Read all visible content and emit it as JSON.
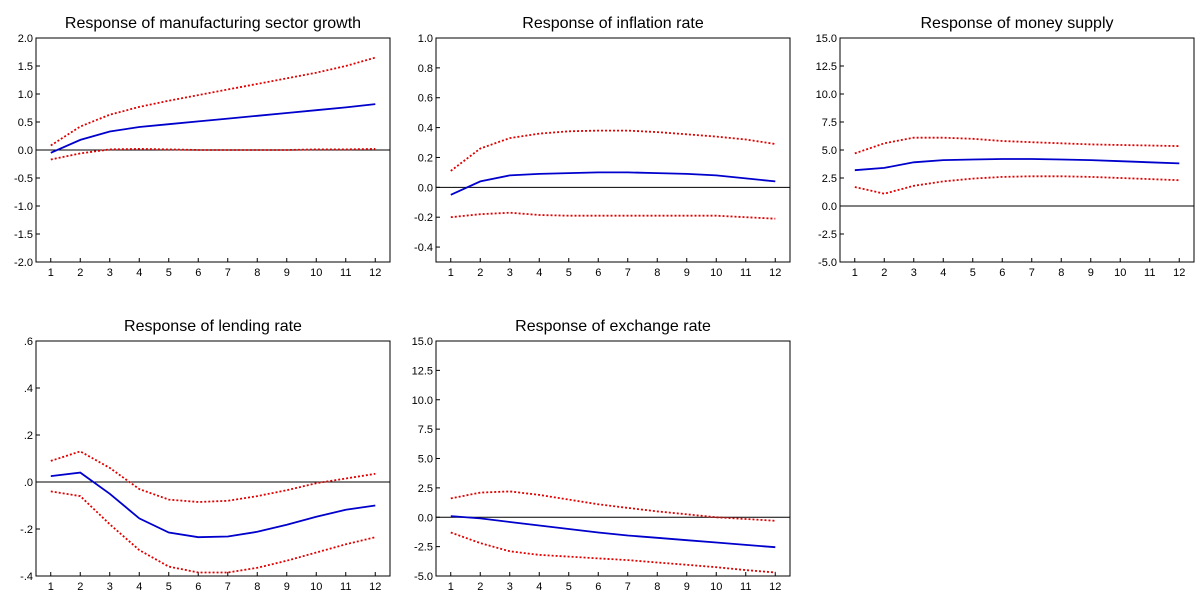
{
  "colors": {
    "response": "#0000cc",
    "band": "#e00000",
    "axis": "#000000",
    "zero_line": "#000000"
  },
  "chart_data": [
    {
      "type": "line",
      "title": "Response of manufacturing sector growth",
      "x": [
        1,
        2,
        3,
        4,
        5,
        6,
        7,
        8,
        9,
        10,
        11,
        12
      ],
      "ylim": [
        -2.0,
        2.0
      ],
      "yticks": [
        "-2.0",
        "-1.5",
        "-1.0",
        "-0.5",
        "0.0",
        "0.5",
        "1.0",
        "1.5",
        "2.0"
      ],
      "ytick_values": [
        -2.0,
        -1.5,
        -1.0,
        -0.5,
        0.0,
        0.5,
        1.0,
        1.5,
        2.0
      ],
      "series": [
        {
          "role": "response",
          "style": "solid",
          "values": [
            -0.05,
            0.18,
            0.33,
            0.41,
            0.46,
            0.51,
            0.56,
            0.61,
            0.66,
            0.71,
            0.76,
            0.82
          ]
        },
        {
          "role": "upper",
          "style": "dotted",
          "values": [
            0.08,
            0.42,
            0.63,
            0.77,
            0.88,
            0.98,
            1.08,
            1.18,
            1.28,
            1.38,
            1.5,
            1.65
          ]
        },
        {
          "role": "lower",
          "style": "dotted",
          "values": [
            -0.17,
            -0.06,
            0.01,
            0.02,
            0.01,
            0.0,
            0.0,
            0.0,
            0.0,
            0.01,
            0.01,
            0.02
          ]
        }
      ]
    },
    {
      "type": "line",
      "title": "Response of inflation rate",
      "x": [
        1,
        2,
        3,
        4,
        5,
        6,
        7,
        8,
        9,
        10,
        11,
        12
      ],
      "ylim": [
        -0.5,
        1.0
      ],
      "yticks": [
        "-0.4",
        "-0.2",
        "0.0",
        "0.2",
        "0.4",
        "0.6",
        "0.8",
        "1.0"
      ],
      "ytick_values": [
        -0.4,
        -0.2,
        0.0,
        0.2,
        0.4,
        0.6,
        0.8,
        1.0
      ],
      "series": [
        {
          "role": "response",
          "style": "solid",
          "values": [
            -0.05,
            0.04,
            0.08,
            0.09,
            0.095,
            0.1,
            0.1,
            0.095,
            0.09,
            0.08,
            0.06,
            0.04
          ]
        },
        {
          "role": "upper",
          "style": "dotted",
          "values": [
            0.11,
            0.26,
            0.33,
            0.36,
            0.375,
            0.38,
            0.38,
            0.37,
            0.355,
            0.34,
            0.32,
            0.29
          ]
        },
        {
          "role": "lower",
          "style": "dotted",
          "values": [
            -0.2,
            -0.18,
            -0.17,
            -0.185,
            -0.19,
            -0.19,
            -0.19,
            -0.19,
            -0.19,
            -0.19,
            -0.2,
            -0.21
          ]
        }
      ]
    },
    {
      "type": "line",
      "title": "Response of money supply",
      "x": [
        1,
        2,
        3,
        4,
        5,
        6,
        7,
        8,
        9,
        10,
        11,
        12
      ],
      "ylim": [
        -5.0,
        15.0
      ],
      "yticks": [
        "-5.0",
        "-2.5",
        "0.0",
        "2.5",
        "5.0",
        "7.5",
        "10.0",
        "12.5",
        "15.0"
      ],
      "ytick_values": [
        -5.0,
        -2.5,
        0.0,
        2.5,
        5.0,
        7.5,
        10.0,
        12.5,
        15.0
      ],
      "series": [
        {
          "role": "response",
          "style": "solid",
          "values": [
            3.2,
            3.4,
            3.9,
            4.1,
            4.15,
            4.2,
            4.2,
            4.15,
            4.1,
            4.0,
            3.9,
            3.8
          ]
        },
        {
          "role": "upper",
          "style": "dotted",
          "values": [
            4.7,
            5.6,
            6.1,
            6.1,
            6.0,
            5.8,
            5.7,
            5.6,
            5.5,
            5.45,
            5.4,
            5.35
          ]
        },
        {
          "role": "lower",
          "style": "dotted",
          "values": [
            1.7,
            1.1,
            1.8,
            2.2,
            2.45,
            2.6,
            2.65,
            2.65,
            2.6,
            2.5,
            2.4,
            2.3
          ]
        }
      ]
    },
    {
      "type": "line",
      "title": "Response of lending rate",
      "x": [
        1,
        2,
        3,
        4,
        5,
        6,
        7,
        8,
        9,
        10,
        11,
        12
      ],
      "ylim": [
        -0.4,
        0.6
      ],
      "yticks": [
        "-.4",
        "-.2",
        ".0",
        ".2",
        ".4",
        ".6"
      ],
      "ytick_values": [
        -0.4,
        -0.2,
        0.0,
        0.2,
        0.4,
        0.6
      ],
      "series": [
        {
          "role": "response",
          "style": "solid",
          "values": [
            0.025,
            0.04,
            -0.05,
            -0.155,
            -0.215,
            -0.235,
            -0.232,
            -0.212,
            -0.182,
            -0.148,
            -0.118,
            -0.1
          ]
        },
        {
          "role": "upper",
          "style": "dotted",
          "values": [
            0.09,
            0.13,
            0.06,
            -0.03,
            -0.075,
            -0.085,
            -0.08,
            -0.06,
            -0.035,
            -0.005,
            0.015,
            0.035
          ]
        },
        {
          "role": "lower",
          "style": "dotted",
          "values": [
            -0.04,
            -0.06,
            -0.18,
            -0.29,
            -0.36,
            -0.385,
            -0.385,
            -0.365,
            -0.335,
            -0.3,
            -0.265,
            -0.235
          ]
        }
      ]
    },
    {
      "type": "line",
      "title": "Response of exchange rate",
      "x": [
        1,
        2,
        3,
        4,
        5,
        6,
        7,
        8,
        9,
        10,
        11,
        12
      ],
      "ylim": [
        -5.0,
        15.0
      ],
      "yticks": [
        "-5.0",
        "-2.5",
        "0.0",
        "2.5",
        "5.0",
        "7.5",
        "10.0",
        "12.5",
        "15.0"
      ],
      "ytick_values": [
        -5.0,
        -2.5,
        0.0,
        2.5,
        5.0,
        7.5,
        10.0,
        12.5,
        15.0
      ],
      "series": [
        {
          "role": "response",
          "style": "solid",
          "values": [
            0.1,
            -0.1,
            -0.4,
            -0.7,
            -1.0,
            -1.3,
            -1.55,
            -1.75,
            -1.95,
            -2.15,
            -2.35,
            -2.55
          ]
        },
        {
          "role": "upper",
          "style": "dotted",
          "values": [
            1.6,
            2.1,
            2.2,
            1.9,
            1.5,
            1.1,
            0.8,
            0.5,
            0.25,
            0.0,
            -0.15,
            -0.3
          ]
        },
        {
          "role": "lower",
          "style": "dotted",
          "values": [
            -1.3,
            -2.2,
            -2.9,
            -3.2,
            -3.35,
            -3.5,
            -3.65,
            -3.85,
            -4.05,
            -4.25,
            -4.5,
            -4.7
          ]
        }
      ]
    }
  ]
}
